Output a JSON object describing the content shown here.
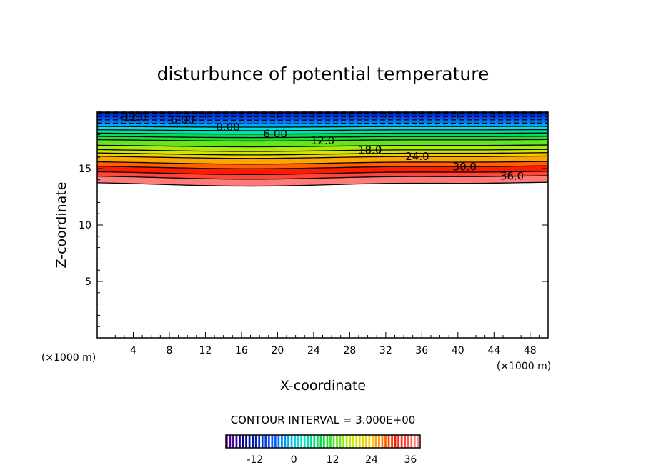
{
  "chart_data": {
    "type": "contour",
    "title": "disturbunce of potential temperature",
    "xlabel": "X-coordinate",
    "ylabel": "Z-coordinate",
    "x_unit": "(×1000 m)",
    "y_unit": "(×1000 m)",
    "xlim": [
      0,
      50
    ],
    "ylim": [
      0,
      20
    ],
    "xticks": [
      4,
      8,
      12,
      16,
      20,
      24,
      28,
      32,
      36,
      40,
      44,
      48
    ],
    "yticks": [
      5,
      10,
      15
    ],
    "contour_interval_label": "CONTOUR INTERVAL = 3.000E+00",
    "contour_interval": 3,
    "levels": [
      -18,
      -15,
      -12,
      -9,
      -6,
      -3,
      0,
      3,
      6,
      9,
      12,
      15,
      18,
      21,
      24,
      27,
      30,
      33,
      36,
      39
    ],
    "level_z_center": [
      20.0,
      20.0,
      19.9,
      19.6,
      19.3,
      19.0,
      18.7,
      18.4,
      18.1,
      17.8,
      17.5,
      17.0,
      16.6,
      16.3,
      16.0,
      15.5,
      15.1,
      14.6,
      14.2,
      13.6
    ],
    "contour_labels": [
      "-12.0",
      "-6.00",
      "0.00",
      "6.00",
      "12.0",
      "18.0",
      "24.0",
      "30.0",
      "36.0"
    ],
    "contour_label_levels": [
      -12,
      -6,
      0,
      6,
      12,
      18,
      24,
      30,
      36
    ],
    "colorbar": {
      "range": [
        -21,
        39
      ],
      "ticks": [
        -12,
        0,
        12,
        24,
        36
      ],
      "tick_labels": [
        "-12",
        "0",
        "12",
        "24",
        "36"
      ]
    }
  }
}
